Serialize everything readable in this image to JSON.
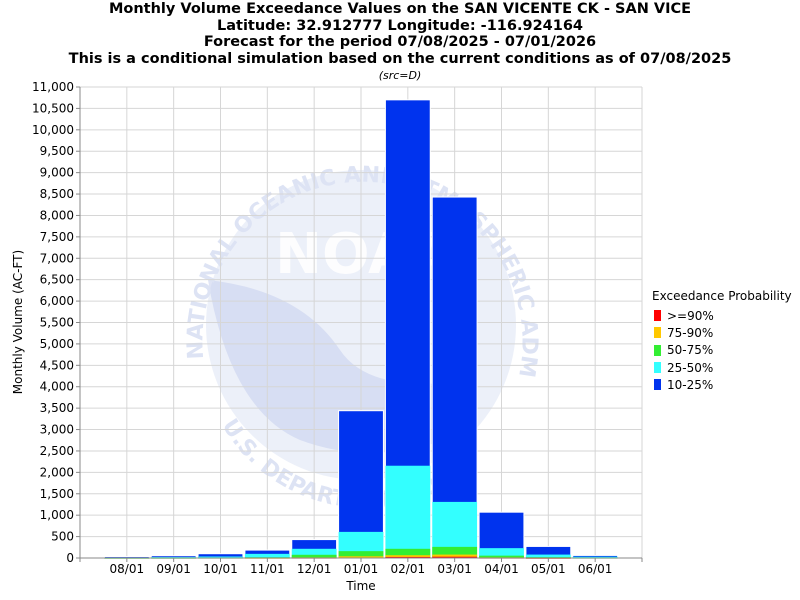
{
  "header": {
    "line1": "Monthly Volume Exceedance Values on the SAN VICENTE CK - SAN VICE",
    "line2": "Latitude: 32.912777 Longitude: -116.924164",
    "line3": "Forecast for the period 07/08/2025 - 07/01/2026",
    "line4": "This is a conditional simulation based on the current conditions as of 07/08/2025",
    "src": "(src=D)"
  },
  "legend": {
    "title": "Exceedance Probability",
    "items": [
      {
        "label": ">=90%",
        "color": "#ff0000"
      },
      {
        "label": "75-90%",
        "color": "#ffc800"
      },
      {
        "label": "50-75%",
        "color": "#33ee33"
      },
      {
        "label": "25-50%",
        "color": "#33ffff"
      },
      {
        "label": "10-25%",
        "color": "#0033ee"
      }
    ]
  },
  "chart_data": {
    "type": "bar",
    "stacked": true,
    "xlabel": "Time",
    "ylabel": "Monthly Volume (AC-FT)",
    "ylim": [
      0,
      11000
    ],
    "yticks": [
      0,
      500,
      1000,
      1500,
      2000,
      2500,
      3000,
      3500,
      4000,
      4500,
      5000,
      5500,
      6000,
      6500,
      7000,
      7500,
      8000,
      8500,
      9000,
      9500,
      10000,
      10500,
      11000
    ],
    "ytick_labels": [
      "0",
      "500",
      "1,000",
      "1,500",
      "2,000",
      "2,500",
      "3,000",
      "3,500",
      "4,000",
      "4,500",
      "5,000",
      "5,500",
      "6,000",
      "6,500",
      "7,000",
      "7,500",
      "8,000",
      "8,500",
      "9,000",
      "9,500",
      "10,000",
      "10,500",
      "11,000"
    ],
    "xtick_labels": [
      "08/01",
      "09/01",
      "10/01",
      "11/01",
      "12/01",
      "01/01",
      "02/01",
      "03/01",
      "04/01",
      "05/01",
      "06/01"
    ],
    "grid": true,
    "legend_position": "right",
    "colors": {
      "bar_fill": "#0033ee",
      "watermark": "#dde3f4",
      "grid": "#d6d6d6"
    },
    "watermark_text": {
      "emblem": "NOAA",
      "upper_arc": "NATIONAL OCEANIC AND ATMOSPHERIC ADMINISTRATION",
      "lower_arc": "U.S. DEPARTMENT OF COMMERCE"
    },
    "series": [
      {
        "name": ">=90%",
        "color": "#ff0000",
        "values": [
          0,
          0,
          0,
          0,
          5,
          10,
          25,
          30,
          5,
          2,
          0
        ]
      },
      {
        "name": "75-90%",
        "color": "#ffc800",
        "values": [
          0,
          0,
          0,
          2,
          10,
          30,
          40,
          50,
          10,
          3,
          0
        ]
      },
      {
        "name": "50-75%",
        "color": "#33ee33",
        "values": [
          2,
          3,
          5,
          15,
          60,
          120,
          150,
          180,
          40,
          15,
          5
        ]
      },
      {
        "name": "25-50%",
        "color": "#33ffff",
        "values": [
          10,
          20,
          30,
          80,
          140,
          450,
          1940,
          1050,
          175,
          60,
          25
        ]
      },
      {
        "name": "10-25%",
        "color": "#0033ee",
        "values": [
          20,
          30,
          65,
          88,
          215,
          2830,
          8545,
          7120,
          840,
          190,
          30
        ]
      }
    ]
  }
}
